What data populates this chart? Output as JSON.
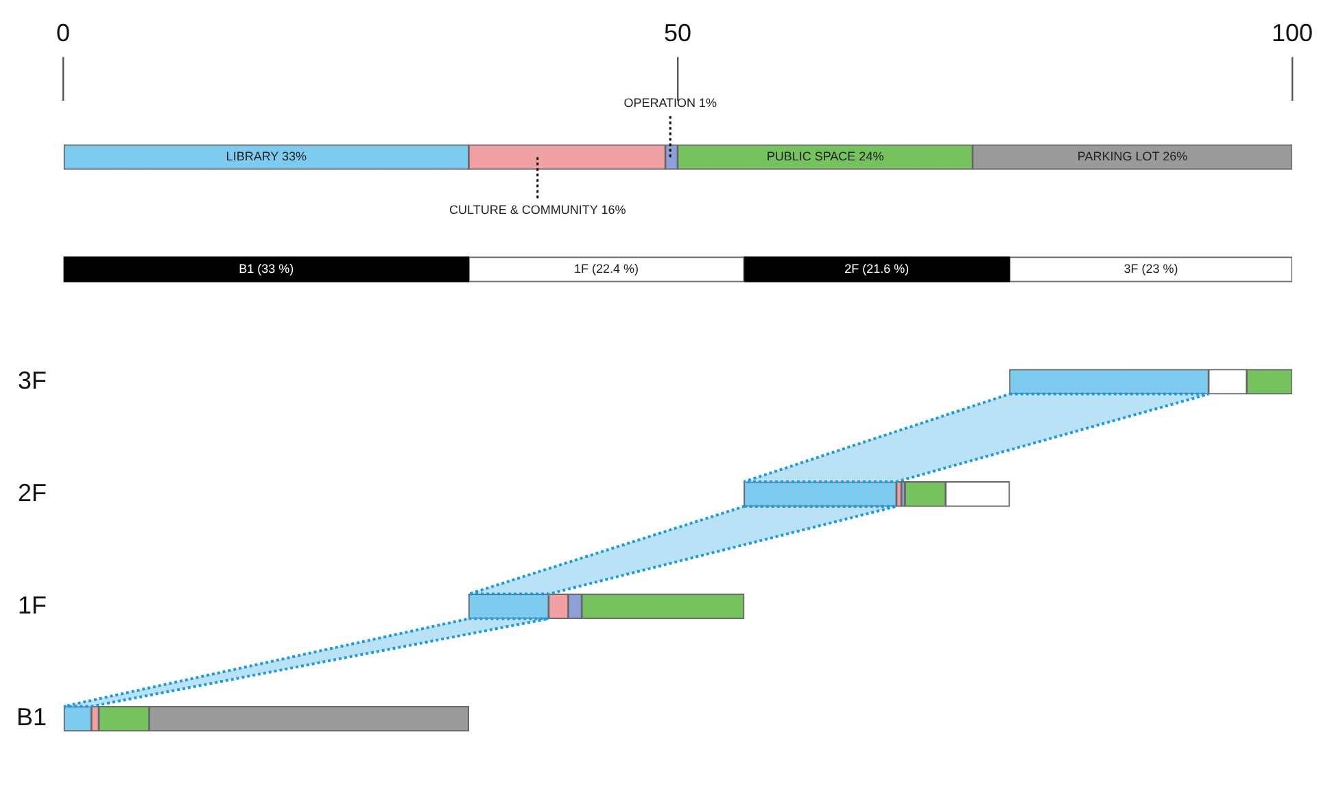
{
  "chart_data": {
    "type": "bar",
    "orientation": "horizontal",
    "categories": [
      null,
      null,
      "3F",
      "2F",
      "1F",
      "B1"
    ],
    "xlim": [
      0,
      100
    ],
    "xticks": [
      0,
      50,
      100
    ],
    "series": [
      {
        "color": "#7ecbf0",
        "base": [
          0,
          null,
          77,
          55.4,
          33,
          0
        ],
        "values": [
          33,
          null,
          16.2,
          12.4,
          6.5,
          2.3
        ],
        "value_labels": [
          "LIBRARY 33%",
          null,
          null,
          null,
          null,
          null
        ]
      },
      {
        "color": "#f1a0a4",
        "base": [
          33,
          null,
          null,
          67.8,
          39.5,
          2.3
        ],
        "values": [
          16,
          null,
          null,
          0.4,
          1.6,
          0.6
        ],
        "value_labels": [
          "CULTURE & COMMUNITY 16%",
          null,
          null,
          null,
          null,
          null
        ]
      },
      {
        "color": "#8f9fd8",
        "base": [
          49,
          null,
          null,
          68.2,
          41.1,
          null
        ],
        "values": [
          1,
          null,
          null,
          0.3,
          1.1,
          null
        ],
        "value_labels": [
          "OPERATION 1%",
          null,
          null,
          null,
          null,
          null
        ]
      },
      {
        "color": "#ffffff",
        "base": [
          null,
          null,
          93.2,
          null,
          null,
          null
        ],
        "values": [
          null,
          null,
          3.1,
          null,
          null,
          null
        ]
      },
      {
        "color": "#76c25e",
        "base": [
          50,
          null,
          96.3,
          68.5,
          42.2,
          2.9
        ],
        "values": [
          24,
          null,
          3.7,
          3.3,
          13.2,
          4.1
        ],
        "value_labels": [
          "PUBLIC SPACE 24%",
          null,
          null,
          null,
          null,
          null
        ]
      },
      {
        "color": "#ffffff",
        "base": [
          null,
          null,
          null,
          71.8,
          null,
          null
        ],
        "values": [
          null,
          null,
          null,
          5.2,
          null,
          null
        ]
      },
      {
        "color": "#9a9a9a",
        "base": [
          74,
          null,
          null,
          null,
          null,
          7
        ],
        "values": [
          26,
          null,
          null,
          null,
          null,
          26
        ],
        "value_labels": [
          "PARKING LOT 26%",
          null,
          null,
          null,
          null,
          null
        ]
      },
      {
        "color": "#000000",
        "base": [
          null,
          0,
          null,
          null,
          null,
          null
        ],
        "values": [
          null,
          33,
          null,
          null,
          null,
          null
        ],
        "value_labels": [
          null,
          "B1 (33 %)",
          null,
          null,
          null,
          null
        ]
      },
      {
        "color": "#ffffff",
        "base": [
          null,
          33,
          null,
          null,
          null,
          null
        ],
        "values": [
          null,
          22.4,
          null,
          null,
          null,
          null
        ],
        "value_labels": [
          null,
          "1F (22.4 %)",
          null,
          null,
          null,
          null
        ]
      },
      {
        "color": "#000000",
        "base": [
          null,
          55.4,
          null,
          null,
          null,
          null
        ],
        "values": [
          null,
          21.6,
          null,
          null,
          null,
          null
        ],
        "value_labels": [
          null,
          "2F (21.6 %)",
          null,
          null,
          null,
          null
        ]
      },
      {
        "color": "#ffffff",
        "base": [
          null,
          77,
          null,
          null,
          null,
          null
        ],
        "values": [
          null,
          23,
          null,
          null,
          null,
          null
        ],
        "value_labels": [
          null,
          "3F (23 %)",
          null,
          null,
          null,
          null
        ]
      }
    ]
  }
}
